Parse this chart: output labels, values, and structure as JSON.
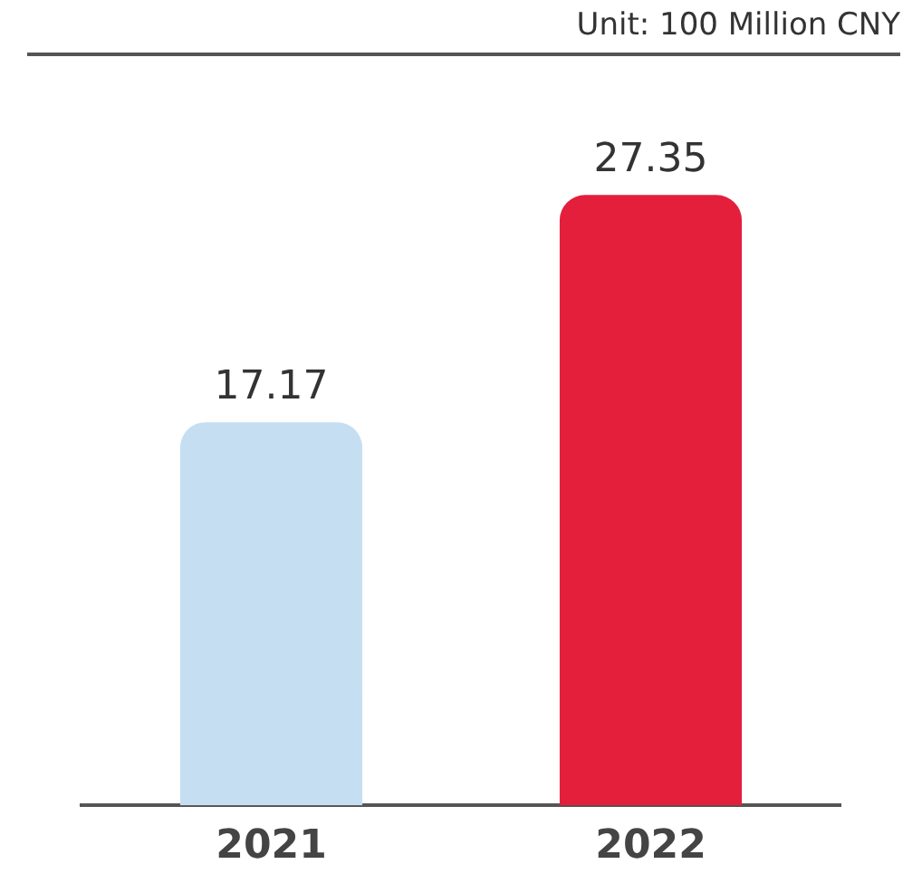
{
  "chart_data": {
    "type": "bar",
    "annotations": [
      "Unit: 100 Million CNY"
    ],
    "categories": [
      "2021",
      "2022"
    ],
    "values": [
      17.17,
      27.35
    ],
    "colors": [
      "#c6def2",
      "#e31f3c"
    ],
    "data_labels": true,
    "grid": false,
    "legend": false
  }
}
